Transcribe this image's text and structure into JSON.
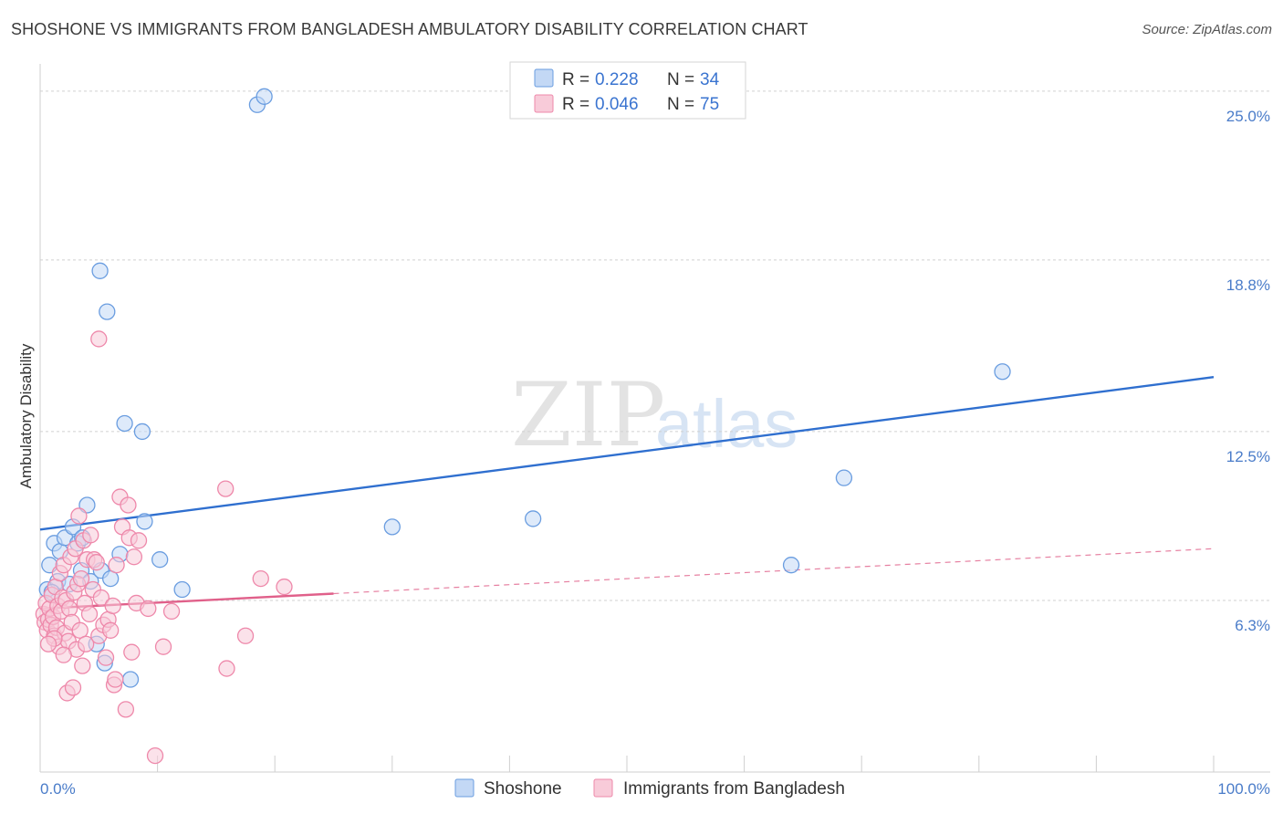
{
  "title": "SHOSHONE VS IMMIGRANTS FROM BANGLADESH AMBULATORY DISABILITY CORRELATION CHART",
  "source": "Source: ZipAtlas.com",
  "watermark": {
    "zip": "ZIP",
    "atlas": "atlas"
  },
  "colors": {
    "blue": "#6a9de0",
    "blue_fill": "#c3d8f5",
    "blue_line": "#2f6fcf",
    "pink": "#ee88aa",
    "pink_fill": "#f8cbd9",
    "pink_line": "#e0608a",
    "grid": "#d0d0d0",
    "tick_text": "#4a7cc9"
  },
  "chart_data": {
    "type": "scatter",
    "title": "SHOSHONE VS IMMIGRANTS FROM BANGLADESH AMBULATORY DISABILITY CORRELATION CHART",
    "xlabel": "",
    "ylabel": "Ambulatory Disability",
    "xlim": [
      0,
      100
    ],
    "ylim": [
      0,
      26
    ],
    "y_ticks": [
      6.3,
      12.5,
      18.8,
      25.0
    ],
    "y_tick_labels": [
      "6.3%",
      "12.5%",
      "18.8%",
      "25.0%"
    ],
    "x_tick_labels": [
      "0.0%",
      "100.0%"
    ],
    "legend": {
      "rows": [
        {
          "r_label": "R = ",
          "r_value": "0.228",
          "n_label": "N = ",
          "n_value": "34"
        },
        {
          "r_label": "R = ",
          "r_value": "0.046",
          "n_label": "N = ",
          "n_value": "75"
        }
      ]
    },
    "series": [
      {
        "name": "Shoshone",
        "trend": {
          "x0": 0,
          "y0": 8.9,
          "x1": 100,
          "y1": 14.5,
          "dashed_from": null
        },
        "points": [
          [
            0.6,
            6.7
          ],
          [
            0.8,
            7.6
          ],
          [
            1.2,
            8.4
          ],
          [
            1.5,
            7.0
          ],
          [
            1.7,
            8.1
          ],
          [
            2.1,
            8.6
          ],
          [
            2.5,
            6.9
          ],
          [
            2.8,
            9.0
          ],
          [
            3.2,
            8.4
          ],
          [
            3.5,
            7.4
          ],
          [
            3.6,
            8.6
          ],
          [
            4.0,
            9.8
          ],
          [
            4.3,
            7.0
          ],
          [
            4.8,
            4.7
          ],
          [
            5.2,
            7.4
          ],
          [
            5.5,
            4.0
          ],
          [
            6.0,
            7.1
          ],
          [
            6.8,
            8.0
          ],
          [
            7.2,
            12.8
          ],
          [
            7.7,
            3.4
          ],
          [
            8.7,
            12.5
          ],
          [
            8.9,
            9.2
          ],
          [
            10.2,
            7.8
          ],
          [
            12.1,
            6.7
          ],
          [
            5.1,
            18.4
          ],
          [
            5.7,
            16.9
          ],
          [
            18.5,
            24.5
          ],
          [
            19.1,
            24.8
          ],
          [
            30.0,
            9.0
          ],
          [
            42.0,
            9.3
          ],
          [
            64.0,
            7.6
          ],
          [
            68.5,
            10.8
          ],
          [
            82.0,
            14.7
          ],
          [
            1.0,
            6.6
          ]
        ]
      },
      {
        "name": "Immigrants from Bangladesh",
        "trend": {
          "x0": 0,
          "y0": 6.0,
          "x1": 100,
          "y1": 8.2,
          "dashed_from": 25
        },
        "points": [
          [
            0.3,
            5.8
          ],
          [
            0.4,
            5.5
          ],
          [
            0.5,
            6.2
          ],
          [
            0.6,
            5.2
          ],
          [
            0.7,
            5.6
          ],
          [
            0.8,
            6.0
          ],
          [
            0.9,
            5.4
          ],
          [
            1.0,
            6.5
          ],
          [
            1.1,
            5.7
          ],
          [
            1.2,
            5.0
          ],
          [
            1.3,
            6.8
          ],
          [
            1.4,
            5.3
          ],
          [
            1.5,
            6.1
          ],
          [
            1.6,
            4.6
          ],
          [
            1.7,
            7.3
          ],
          [
            1.8,
            5.9
          ],
          [
            1.9,
            6.4
          ],
          [
            2.0,
            7.6
          ],
          [
            2.1,
            5.1
          ],
          [
            2.2,
            6.3
          ],
          [
            2.3,
            2.9
          ],
          [
            2.4,
            4.8
          ],
          [
            2.5,
            6.0
          ],
          [
            2.6,
            7.9
          ],
          [
            2.7,
            5.5
          ],
          [
            2.8,
            3.1
          ],
          [
            2.9,
            6.6
          ],
          [
            3.0,
            8.2
          ],
          [
            3.1,
            4.5
          ],
          [
            3.2,
            6.9
          ],
          [
            3.3,
            9.4
          ],
          [
            3.4,
            5.2
          ],
          [
            3.5,
            7.1
          ],
          [
            3.6,
            3.9
          ],
          [
            3.7,
            8.5
          ],
          [
            3.8,
            6.2
          ],
          [
            3.9,
            4.7
          ],
          [
            4.0,
            7.8
          ],
          [
            4.2,
            5.8
          ],
          [
            4.3,
            8.7
          ],
          [
            4.5,
            6.7
          ],
          [
            4.6,
            7.8
          ],
          [
            4.8,
            7.7
          ],
          [
            5.0,
            5.0
          ],
          [
            5.2,
            6.4
          ],
          [
            5.4,
            5.4
          ],
          [
            5.6,
            4.2
          ],
          [
            5.8,
            5.6
          ],
          [
            6.0,
            5.2
          ],
          [
            6.2,
            6.1
          ],
          [
            6.3,
            3.2
          ],
          [
            6.4,
            3.4
          ],
          [
            6.5,
            7.6
          ],
          [
            6.8,
            10.1
          ],
          [
            7.0,
            9.0
          ],
          [
            7.3,
            2.3
          ],
          [
            7.5,
            9.8
          ],
          [
            7.6,
            8.6
          ],
          [
            7.8,
            4.4
          ],
          [
            8.0,
            7.9
          ],
          [
            8.2,
            6.2
          ],
          [
            8.4,
            8.5
          ],
          [
            9.2,
            6.0
          ],
          [
            9.8,
            0.6
          ],
          [
            10.5,
            4.6
          ],
          [
            11.2,
            5.9
          ],
          [
            5.0,
            15.9
          ],
          [
            15.8,
            10.4
          ],
          [
            15.9,
            3.8
          ],
          [
            17.5,
            5.0
          ],
          [
            18.8,
            7.1
          ],
          [
            20.8,
            6.8
          ],
          [
            1.2,
            4.9
          ],
          [
            0.7,
            4.7
          ],
          [
            2.0,
            4.3
          ]
        ]
      }
    ]
  }
}
